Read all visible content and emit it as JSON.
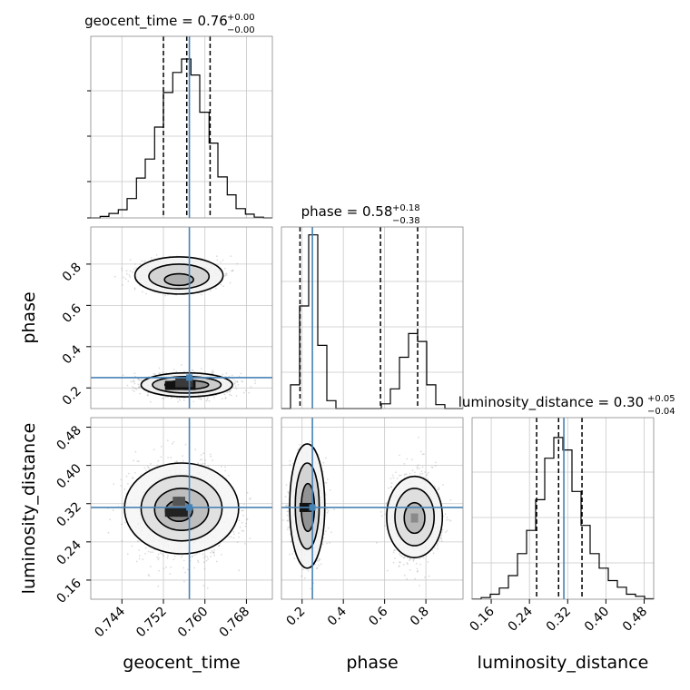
{
  "chart_data": {
    "type": "corner",
    "parameters": [
      {
        "name": "geocent_time",
        "axis_label": "geocent_time",
        "title": {
          "prefix": "geocent_time = 0.76",
          "sup": "+0.00",
          "sub": "−0.00"
        },
        "range": [
          0.738,
          0.773
        ],
        "ticks": [
          0.744,
          0.752,
          0.76,
          0.768
        ],
        "tick_labels": [
          "0.744",
          "0.752",
          "0.760",
          "0.768"
        ],
        "truth": 0.757,
        "quantiles": [
          0.752,
          0.7565,
          0.761
        ],
        "hist": {
          "edges": [
            0.738,
            0.7398,
            0.7415,
            0.7433,
            0.745,
            0.7468,
            0.7485,
            0.7503,
            0.752,
            0.7538,
            0.7555,
            0.7573,
            0.759,
            0.7608,
            0.7625,
            0.7643,
            0.766,
            0.7678,
            0.7695,
            0.7713,
            0.773
          ],
          "counts": [
            0.0,
            0.4,
            1.2,
            2.2,
            5.2,
            10.7,
            15.8,
            24.4,
            33.7,
            39.1,
            42.7,
            38.4,
            28.4,
            20.1,
            11.0,
            6.2,
            2.5,
            1.0,
            0.2,
            0.0
          ],
          "ymax": 48.8
        }
      },
      {
        "name": "phase",
        "axis_label": "phase",
        "title": {
          "prefix": "phase = 0.58",
          "sup": "+0.18",
          "sub": "−0.38"
        },
        "range": [
          0.1,
          0.98
        ],
        "ticks": [
          0.2,
          0.4,
          0.6,
          0.8
        ],
        "tick_labels": [
          "0.2",
          "0.4",
          "0.6",
          "0.8"
        ],
        "truth": 0.25,
        "quantiles": [
          0.19,
          0.58,
          0.76
        ],
        "hist": {
          "edges": [
            0.1,
            0.144,
            0.188,
            0.232,
            0.276,
            0.32,
            0.364,
            0.408,
            0.452,
            0.496,
            0.54,
            0.584,
            0.628,
            0.672,
            0.716,
            0.76,
            0.804,
            0.848,
            0.892,
            0.936,
            0.98
          ],
          "counts": [
            0.0,
            3.0,
            13.0,
            22.0,
            8.0,
            1.0,
            0.0,
            0.0,
            0.0,
            0.0,
            0.0,
            0.6,
            2.5,
            6.5,
            9.5,
            8.5,
            3.0,
            0.5,
            0.0,
            0.0
          ],
          "ymax": 23.0
        }
      },
      {
        "name": "luminosity_distance",
        "axis_label": "luminosity_distance",
        "title": {
          "prefix": "luminosity_distance = 0.30",
          "sup": "+0.05",
          "sub": "−0.04"
        },
        "range": [
          0.12,
          0.5
        ],
        "ticks": [
          0.16,
          0.24,
          0.32,
          0.4,
          0.48
        ],
        "tick_labels": [
          "0.16",
          "0.24",
          "0.32",
          "0.40",
          "0.48"
        ],
        "truth": 0.312,
        "quantiles": [
          0.255,
          0.301,
          0.35
        ],
        "hist": {
          "edges": [
            0.12,
            0.139,
            0.158,
            0.177,
            0.196,
            0.215,
            0.234,
            0.253,
            0.272,
            0.291,
            0.31,
            0.329,
            0.348,
            0.367,
            0.386,
            0.405,
            0.424,
            0.443,
            0.462,
            0.481,
            0.5
          ],
          "counts": [
            0.05,
            0.4,
            1.2,
            2.7,
            5.7,
            11.0,
            16.6,
            24.0,
            34.0,
            39.0,
            36.0,
            26.0,
            17.8,
            11.0,
            7.5,
            4.5,
            2.9,
            1.2,
            0.7,
            0.1
          ],
          "ymax": 43.8
        }
      }
    ],
    "pairs": [
      {
        "x": "geocent_time",
        "y": "phase",
        "clusters": [
          {
            "center": [
              0.7565,
              0.215
            ],
            "sigma": [
              0.004,
              0.026
            ],
            "samples": 1400
          },
          {
            "center": [
              0.755,
              0.745
            ],
            "sigma": [
              0.004,
              0.035
            ],
            "samples": 900
          }
        ],
        "contours": [
          {
            "center": [
              0.7565,
              0.215
            ],
            "radius": [
              0.0088,
              0.058
            ],
            "fill": "#f3f3f3"
          },
          {
            "center": [
              0.7565,
              0.215
            ],
            "radius": [
              0.0066,
              0.04
            ],
            "fill": "#c7c7c7"
          },
          {
            "center": [
              0.7565,
              0.215
            ],
            "radius": [
              0.0042,
              0.022
            ],
            "fill": "#8d8d8d"
          },
          {
            "center": [
              0.755,
              0.745
            ],
            "radius": [
              0.0085,
              0.09
            ],
            "fill": "#f3f3f3"
          },
          {
            "center": [
              0.755,
              0.74
            ],
            "radius": [
              0.0058,
              0.06
            ],
            "fill": "#cfcfcf"
          },
          {
            "center": [
              0.755,
              0.725
            ],
            "radius": [
              0.0028,
              0.028
            ],
            "fill": "#a8a8a8"
          }
        ],
        "cores": [
          {
            "x": [
              0.753,
              0.7535,
              0.7545,
              0.7555,
              0.7565,
              0.7575
            ],
            "y": 0.212,
            "fill": "#111111"
          },
          {
            "x": [
              0.755,
              0.756,
              0.757
            ],
            "y": 0.225,
            "fill": "#3a3a3a"
          }
        ]
      },
      {
        "x": "geocent_time",
        "y": "luminosity_distance",
        "clusters": [
          {
            "center": [
              0.7555,
              0.305
            ],
            "sigma": [
              0.0044,
              0.046
            ],
            "samples": 2200
          }
        ],
        "contours": [
          {
            "center": [
              0.7555,
              0.31
            ],
            "radius": [
              0.011,
              0.095
            ],
            "fill": "#f6f6f6"
          },
          {
            "center": [
              0.7555,
              0.31
            ],
            "radius": [
              0.0078,
              0.068
            ],
            "fill": "#dedede"
          },
          {
            "center": [
              0.7555,
              0.308
            ],
            "radius": [
              0.0052,
              0.044
            ],
            "fill": "#b8b8b8"
          },
          {
            "center": [
              0.755,
              0.305
            ],
            "radius": [
              0.0026,
              0.022
            ],
            "fill": "#7a7a7a"
          }
        ],
        "cores": [
          {
            "x": [
              0.753,
              0.754,
              0.755,
              0.756
            ],
            "y": 0.302,
            "fill": "#222222"
          },
          {
            "x": [
              0.7545,
              0.7555
            ],
            "y": 0.325,
            "fill": "#555555"
          }
        ]
      },
      {
        "x": "phase",
        "y": "luminosity_distance",
        "clusters": [
          {
            "center": [
              0.225,
              0.31
            ],
            "sigma": [
              0.038,
              0.05
            ],
            "samples": 1300
          },
          {
            "center": [
              0.745,
              0.292
            ],
            "sigma": [
              0.06,
              0.046
            ],
            "samples": 1000
          }
        ],
        "contours": [
          {
            "center": [
              0.225,
              0.315
            ],
            "radius": [
              0.085,
              0.13
            ],
            "fill": "#f4f4f4"
          },
          {
            "center": [
              0.225,
              0.315
            ],
            "radius": [
              0.058,
              0.09
            ],
            "fill": "#cfcfcf"
          },
          {
            "center": [
              0.228,
              0.312
            ],
            "radius": [
              0.032,
              0.05
            ],
            "fill": "#8a8a8a"
          },
          {
            "center": [
              0.745,
              0.292
            ],
            "radius": [
              0.135,
              0.085
            ],
            "fill": "#f4f4f4"
          },
          {
            "center": [
              0.745,
              0.292
            ],
            "radius": [
              0.095,
              0.06
            ],
            "fill": "#dcdcdc"
          },
          {
            "center": [
              0.745,
              0.29
            ],
            "radius": [
              0.05,
              0.032
            ],
            "fill": "#b0b0b0"
          }
        ],
        "cores": [
          {
            "x": [
              0.205,
              0.23
            ],
            "y": 0.312,
            "fill": "#111111"
          },
          {
            "x": [
              0.745
            ],
            "y": 0.29,
            "fill": "#8a8a8a"
          }
        ]
      }
    ],
    "truth_color": "#4682b4",
    "grid": true,
    "legend": "none"
  }
}
